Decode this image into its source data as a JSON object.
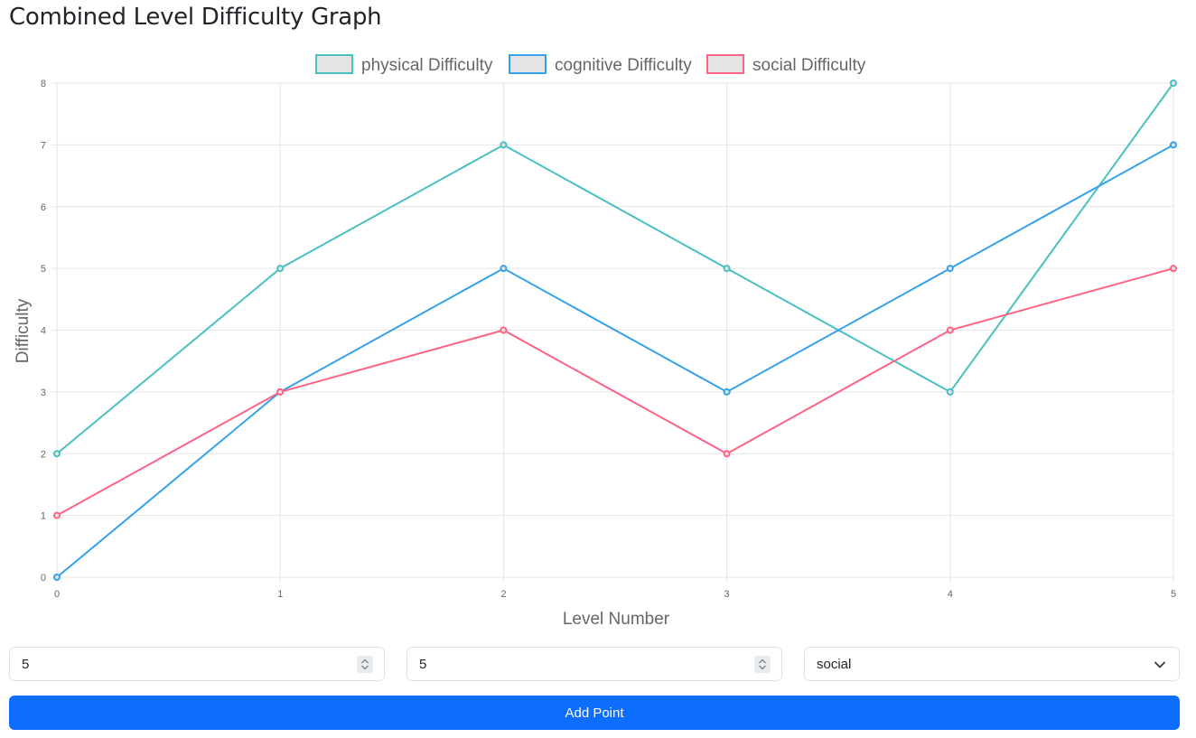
{
  "page": {
    "title": "Combined Level Difficulty Graph"
  },
  "chart_data": {
    "type": "line",
    "x": [
      0,
      1,
      2,
      3,
      4,
      5
    ],
    "xlabel": "Level Number",
    "ylabel": "Difficulty",
    "xlim": [
      0,
      5
    ],
    "ylim": [
      0,
      8
    ],
    "yticks": [
      0,
      1,
      2,
      3,
      4,
      5,
      6,
      7,
      8
    ],
    "xticks": [
      0,
      1,
      2,
      3,
      4,
      5
    ],
    "grid": true,
    "legend_position": "top-center",
    "series": [
      {
        "name": "physical Difficulty",
        "color": "#4bc0c0",
        "values": [
          2,
          5,
          7,
          5,
          3,
          8
        ]
      },
      {
        "name": "cognitive Difficulty",
        "color": "#36a2eb",
        "values": [
          0,
          3,
          5,
          3,
          5,
          7
        ]
      },
      {
        "name": "social Difficulty",
        "color": "#ff6384",
        "values": [
          1,
          3,
          4,
          2,
          4,
          5
        ]
      }
    ]
  },
  "form": {
    "level_value": "5",
    "difficulty_value": "5",
    "category_selected": "social",
    "add_button_label": "Add Point"
  },
  "colors": {
    "primary_button": "#0d6efd",
    "grid": "#e5e5e5"
  }
}
